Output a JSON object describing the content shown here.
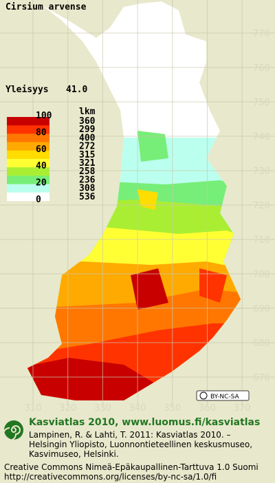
{
  "title": "Cirsium arvense",
  "frequency": {
    "label": "Yleisyys",
    "value": "41.0"
  },
  "legend": {
    "count_header": "lkm",
    "scale_ticks": [
      100,
      80,
      60,
      40,
      20,
      0
    ],
    "classes": [
      {
        "color": "#c80000",
        "count": 360
      },
      {
        "color": "#ff3300",
        "count": 299
      },
      {
        "color": "#ff7700",
        "count": 400
      },
      {
        "color": "#ffaa00",
        "count": 272
      },
      {
        "color": "#ffdd00",
        "count": 315
      },
      {
        "color": "#ffff33",
        "count": 321
      },
      {
        "color": "#aaee33",
        "count": 258
      },
      {
        "color": "#77ee77",
        "count": 236
      },
      {
        "color": "#bbffee",
        "count": 308
      },
      {
        "color": "#ffffff",
        "count": 536
      }
    ]
  },
  "grid": {
    "y_labels": [
      770,
      760,
      750,
      740,
      730,
      720,
      710,
      700,
      690,
      680,
      670
    ],
    "x_labels": [
      310,
      320,
      330,
      340,
      350,
      360,
      370
    ]
  },
  "license_badge": "BY-NC-SA",
  "footer": {
    "heading": "Kasviatlas 2010, www.luomus.fi/kasviatlas",
    "citation": [
      "Lampinen, R. & Lahti, T. 2011: Kasviatlas 2010. –",
      "Helsingin Yliopisto, Luonnontieteellinen keskusmuseo,",
      "Kasvimuseo, Helsinki."
    ],
    "license": [
      "Creative Commons Nimeä-Epäkaupallinen-Tarttuva 1.0 Suomi",
      "http://creativecommons.org/licenses/by-nc-sa/1.0/fi"
    ]
  }
}
